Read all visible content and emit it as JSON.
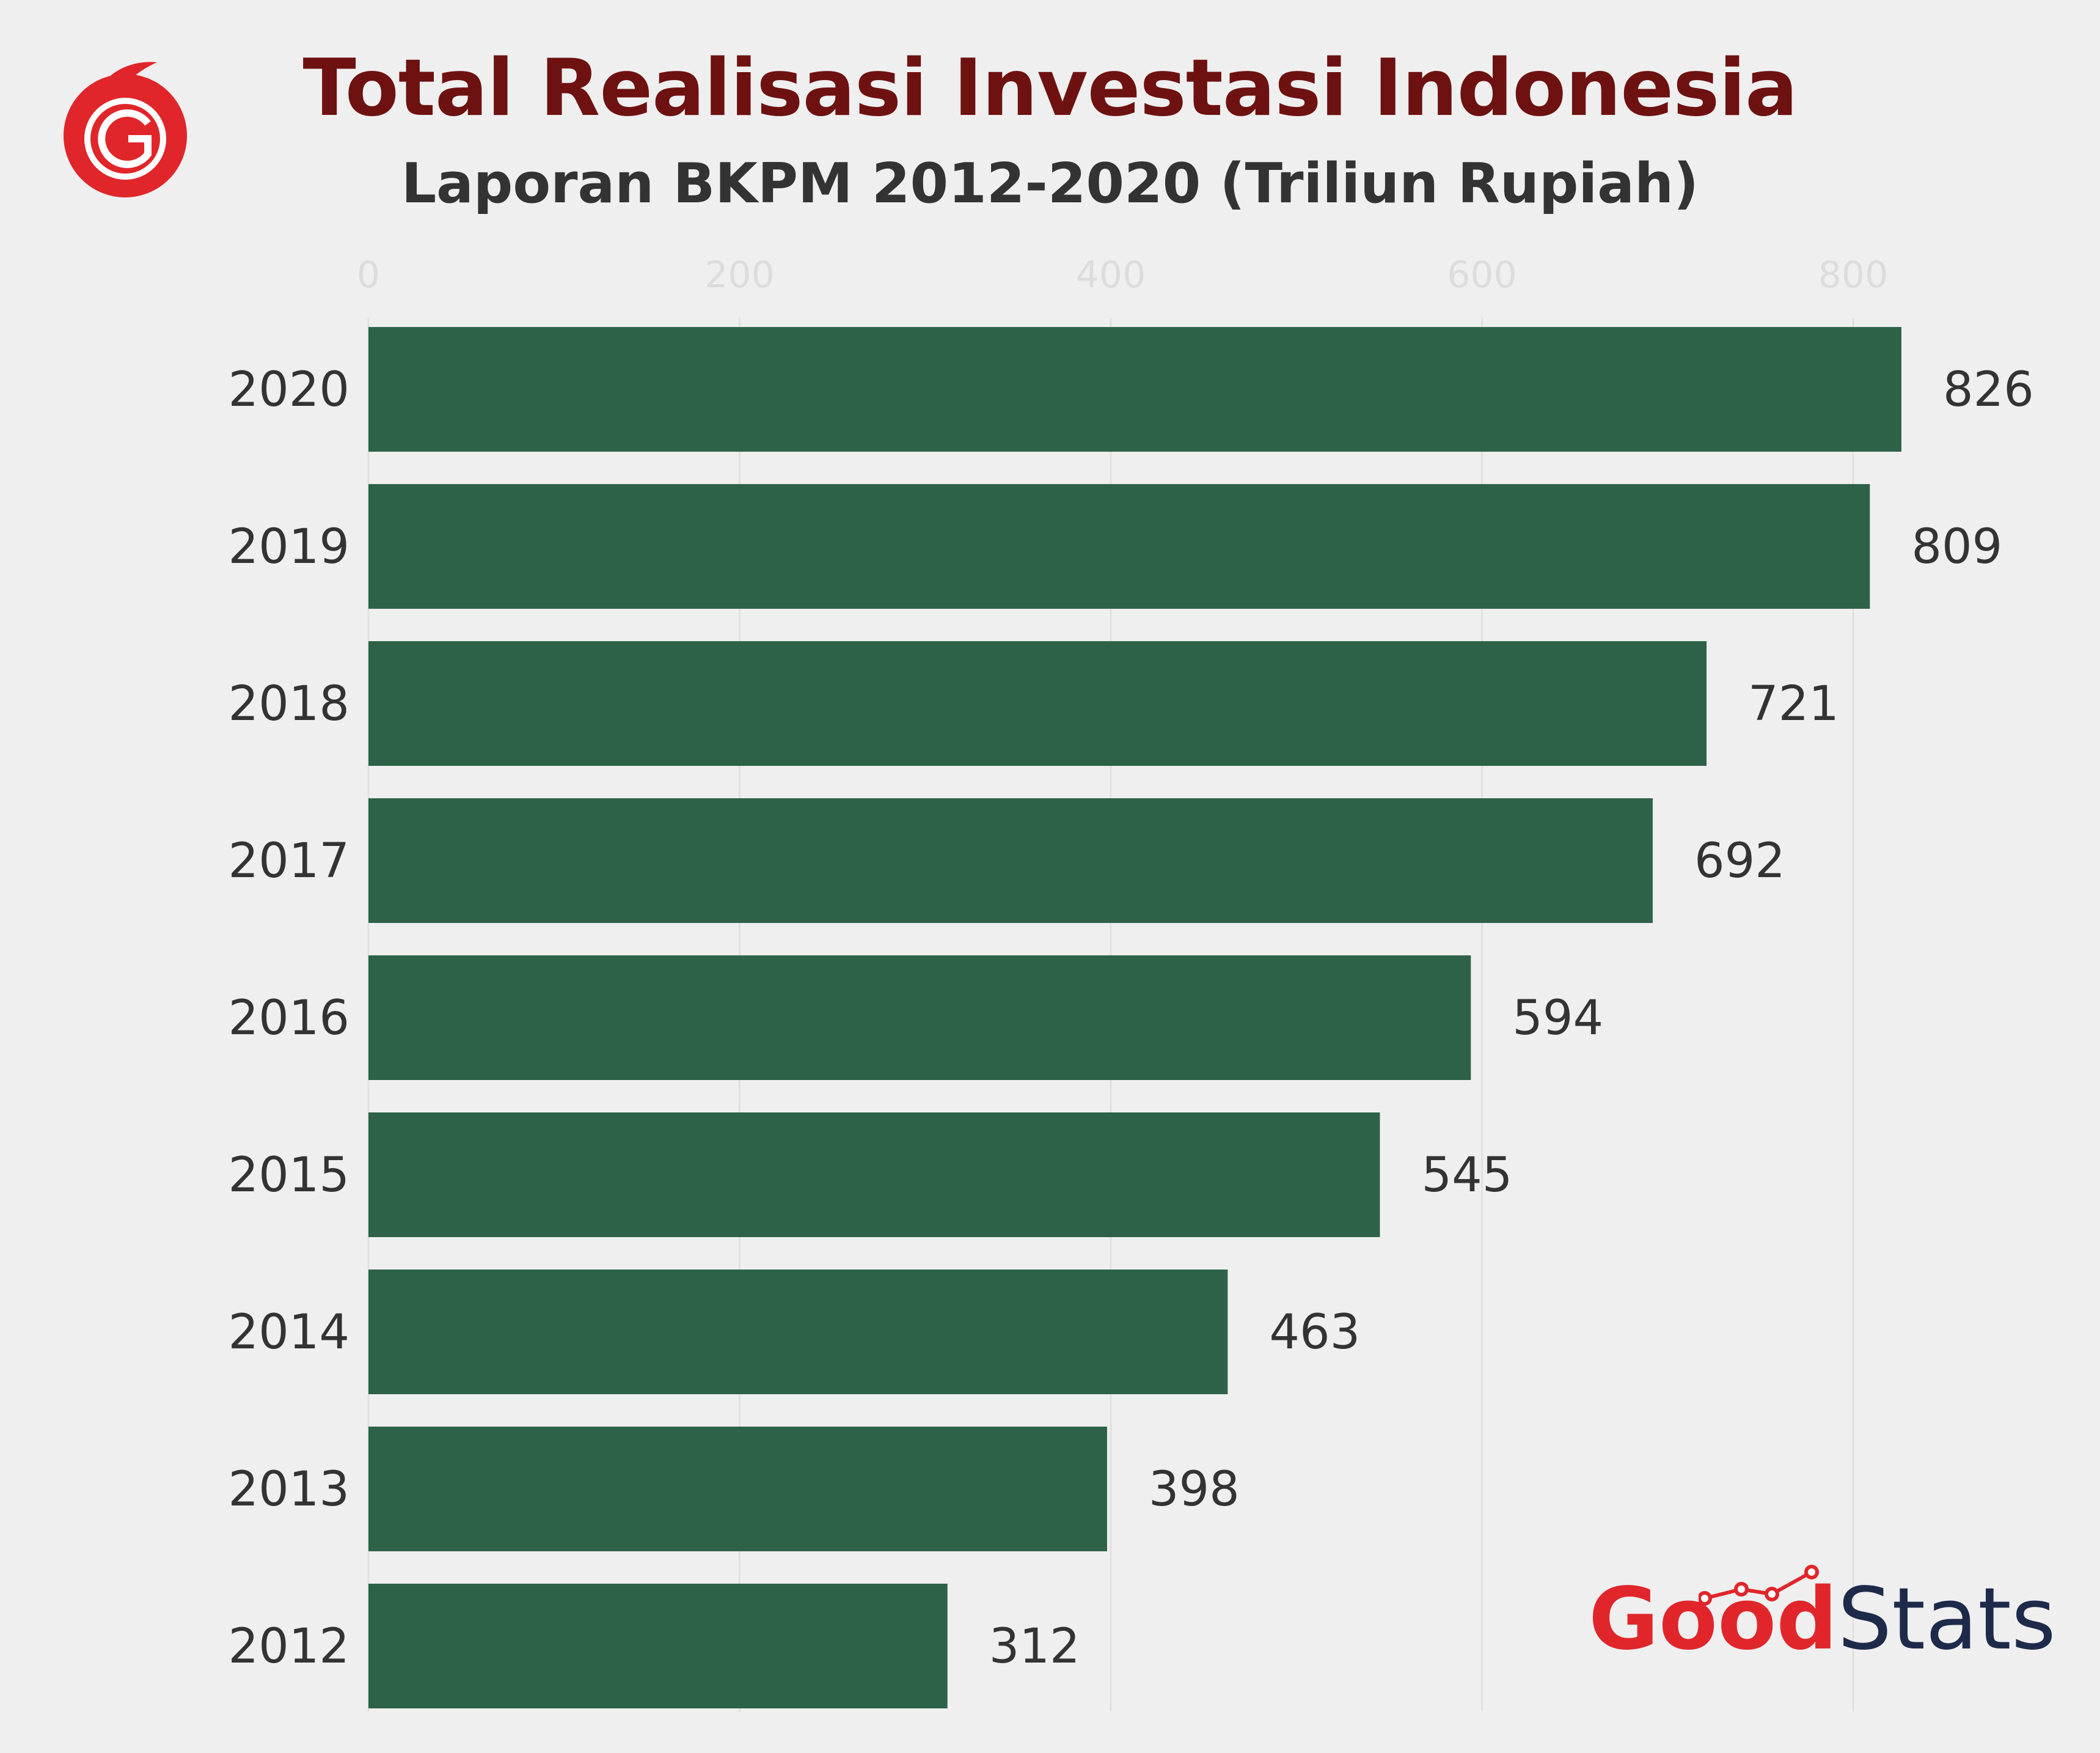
{
  "header": {
    "title": "Total Realisasi Investasi Indonesia",
    "subtitle": "Laporan BKPM 2012-2020 (Triliun Rupiah)"
  },
  "branding": {
    "logo_icon": "goodnews-circle-logo-icon",
    "good": "Good",
    "stats": "Stats"
  },
  "colors": {
    "bar": "#2d6249",
    "title": "#6e1111",
    "subtitle": "#333333",
    "tick": "#dcdcdc",
    "grid": "#e0e0e0",
    "label": "#333333",
    "logo_red": "#e0262b",
    "stats_navy": "#1e2a4a"
  },
  "chart_data": {
    "type": "bar",
    "orientation": "horizontal",
    "title": "Total Realisasi Investasi Indonesia",
    "subtitle": "Laporan BKPM 2012-2020 (Triliun Rupiah)",
    "categories": [
      "2020",
      "2019",
      "2018",
      "2017",
      "2016",
      "2015",
      "2014",
      "2013",
      "2012"
    ],
    "values": [
      826,
      809,
      721,
      692,
      594,
      545,
      463,
      398,
      312
    ],
    "x_ticks": [
      0,
      200,
      400,
      600,
      800
    ],
    "xlim": [
      0,
      826
    ],
    "x_axis_position": "top",
    "grid": true,
    "data_labels": true
  }
}
